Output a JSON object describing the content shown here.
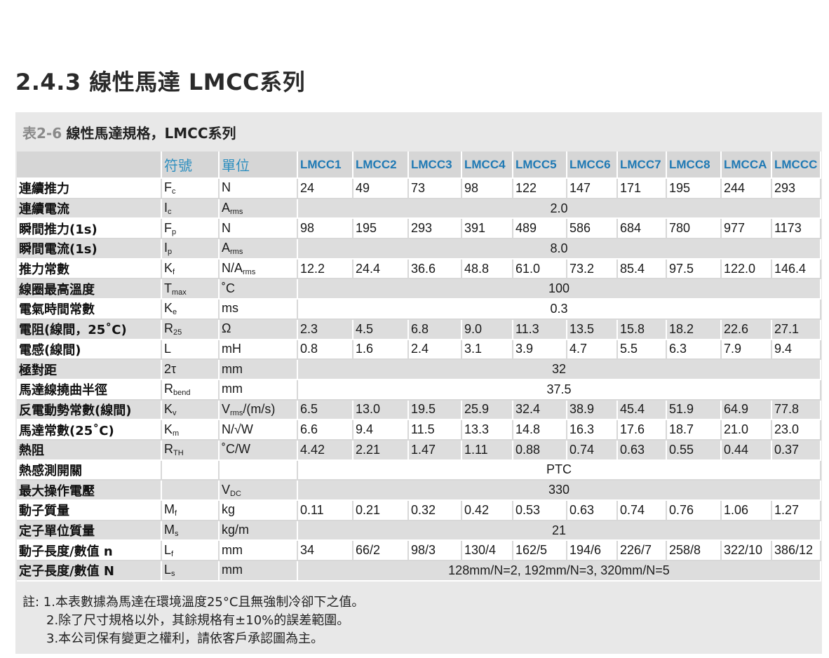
{
  "section_title": "2.4.3 線性馬達 LMCC系列",
  "caption": {
    "number": "表2-6",
    "text": "線性馬達規格，LMCC系列"
  },
  "headers": {
    "symbol": "符號",
    "unit": "單位",
    "models": [
      "LMCC1",
      "LMCC2",
      "LMCC3",
      "LMCC4",
      "LMCC5",
      "LMCC6",
      "LMCC7",
      "LMCC8",
      "LMCCA",
      "LMCCC"
    ]
  },
  "rows": [
    {
      "label": "連續推力",
      "sym": "F",
      "sym_sub": "c",
      "unit": "N",
      "unit_sub": "",
      "unit_tail": "",
      "values": [
        "24",
        "49",
        "73",
        "98",
        "122",
        "147",
        "171",
        "195",
        "244",
        "293"
      ]
    },
    {
      "label": "連續電流",
      "sym": "I",
      "sym_sub": "c",
      "unit": "A",
      "unit_sub": "rms",
      "unit_tail": "",
      "span": "2.0"
    },
    {
      "label": "瞬間推力(1s)",
      "sym": "F",
      "sym_sub": "p",
      "unit": "N",
      "unit_sub": "",
      "unit_tail": "",
      "values": [
        "98",
        "195",
        "293",
        "391",
        "489",
        "586",
        "684",
        "780",
        "977",
        "1173"
      ]
    },
    {
      "label": "瞬間電流(1s)",
      "sym": "I",
      "sym_sub": "p",
      "unit": "A",
      "unit_sub": "rms",
      "unit_tail": "",
      "span": "8.0"
    },
    {
      "label": "推力常數",
      "sym": "K",
      "sym_sub": "f",
      "unit": "N/A",
      "unit_sub": "rms",
      "unit_tail": "",
      "values": [
        "12.2",
        "24.4",
        "36.6",
        "48.8",
        "61.0",
        "73.2",
        "85.4",
        "97.5",
        "122.0",
        "146.4"
      ]
    },
    {
      "label": "線圈最高溫度",
      "sym": "T",
      "sym_sub": "max",
      "unit": "˚C",
      "unit_sub": "",
      "unit_tail": "",
      "span": "100"
    },
    {
      "label": "電氣時間常數",
      "sym": "K",
      "sym_sub": "e",
      "unit": "ms",
      "unit_sub": "",
      "unit_tail": "",
      "span": "0.3"
    },
    {
      "label": "電阻(線間，25˚C)",
      "sym": "R",
      "sym_sub": "25",
      "unit": "Ω",
      "unit_sub": "",
      "unit_tail": "",
      "values": [
        "2.3",
        "4.5",
        "6.8",
        "9.0",
        "11.3",
        "13.5",
        "15.8",
        "18.2",
        "22.6",
        "27.1"
      ]
    },
    {
      "label": "電感(線間)",
      "sym": "L",
      "sym_sub": "",
      "unit": "mH",
      "unit_sub": "",
      "unit_tail": "",
      "values": [
        "0.8",
        "1.6",
        "2.4",
        "3.1",
        "3.9",
        "4.7",
        "5.5",
        "6.3",
        "7.9",
        "9.4"
      ]
    },
    {
      "label": "極對距",
      "sym": "2τ",
      "sym_sub": "",
      "unit": "mm",
      "unit_sub": "",
      "unit_tail": "",
      "span": "32"
    },
    {
      "label": "馬達線撓曲半徑",
      "sym": "R",
      "sym_sub": "bend",
      "unit": "mm",
      "unit_sub": "",
      "unit_tail": "",
      "span": "37.5"
    },
    {
      "label": "反電動勢常數(線間)",
      "sym": "K",
      "sym_sub": "v",
      "unit": "V",
      "unit_sub": "rms",
      "unit_tail": "/(m/s)",
      "values": [
        "6.5",
        "13.0",
        "19.5",
        "25.9",
        "32.4",
        "38.9",
        "45.4",
        "51.9",
        "64.9",
        "77.8"
      ]
    },
    {
      "label": "馬達常數(25˚C)",
      "sym": "K",
      "sym_sub": "m",
      "unit": "N/√W",
      "unit_sub": "",
      "unit_tail": "",
      "values": [
        "6.6",
        "9.4",
        "11.5",
        "13.3",
        "14.8",
        "16.3",
        "17.6",
        "18.7",
        "21.0",
        "23.0"
      ]
    },
    {
      "label": "熱阻",
      "sym": "R",
      "sym_sub": "TH",
      "unit": "˚C/W",
      "unit_sub": "",
      "unit_tail": "",
      "values": [
        "4.42",
        "2.21",
        "1.47",
        "1.11",
        "0.88",
        "0.74",
        "0.63",
        "0.55",
        "0.44",
        "0.37"
      ]
    },
    {
      "label": "熱感測開關",
      "sym": "",
      "sym_sub": "",
      "unit": "",
      "unit_sub": "",
      "unit_tail": "",
      "span": "PTC"
    },
    {
      "label": "最大操作電壓",
      "sym": "",
      "sym_sub": "",
      "unit": "V",
      "unit_sub": "DC",
      "unit_tail": "",
      "span": "330"
    },
    {
      "label": "動子質量",
      "sym": "M",
      "sym_sub": "f",
      "unit": "kg",
      "unit_sub": "",
      "unit_tail": "",
      "values": [
        "0.11",
        "0.21",
        "0.32",
        "0.42",
        "0.53",
        "0.63",
        "0.74",
        "0.76",
        "1.06",
        "1.27"
      ]
    },
    {
      "label": "定子單位質量",
      "sym": "M",
      "sym_sub": "s",
      "unit": "kg/m",
      "unit_sub": "",
      "unit_tail": "",
      "span": "21"
    },
    {
      "label": "動子長度/數值 n",
      "sym": "L",
      "sym_sub": "f",
      "unit": "mm",
      "unit_sub": "",
      "unit_tail": "",
      "values": [
        "34",
        "66/2",
        "98/3",
        "130/4",
        "162/5",
        "194/6",
        "226/7",
        "258/8",
        "322/10",
        "386/12"
      ]
    },
    {
      "label": "定子長度/數值 N",
      "sym": "L",
      "sym_sub": "s",
      "unit": "mm",
      "unit_sub": "",
      "unit_tail": "",
      "span": "128mm/N=2, 192mm/N=3, 320mm/N=5"
    }
  ],
  "notes": [
    "註: 1.本表數據為馬達在環境溫度25°C且無強制冷卻下之值。",
    "2.除了尺寸規格以外，其餘規格有±10%的誤差範圍。",
    "3.本公司保有變更之權利，請依客戶承認圖為主。"
  ]
}
